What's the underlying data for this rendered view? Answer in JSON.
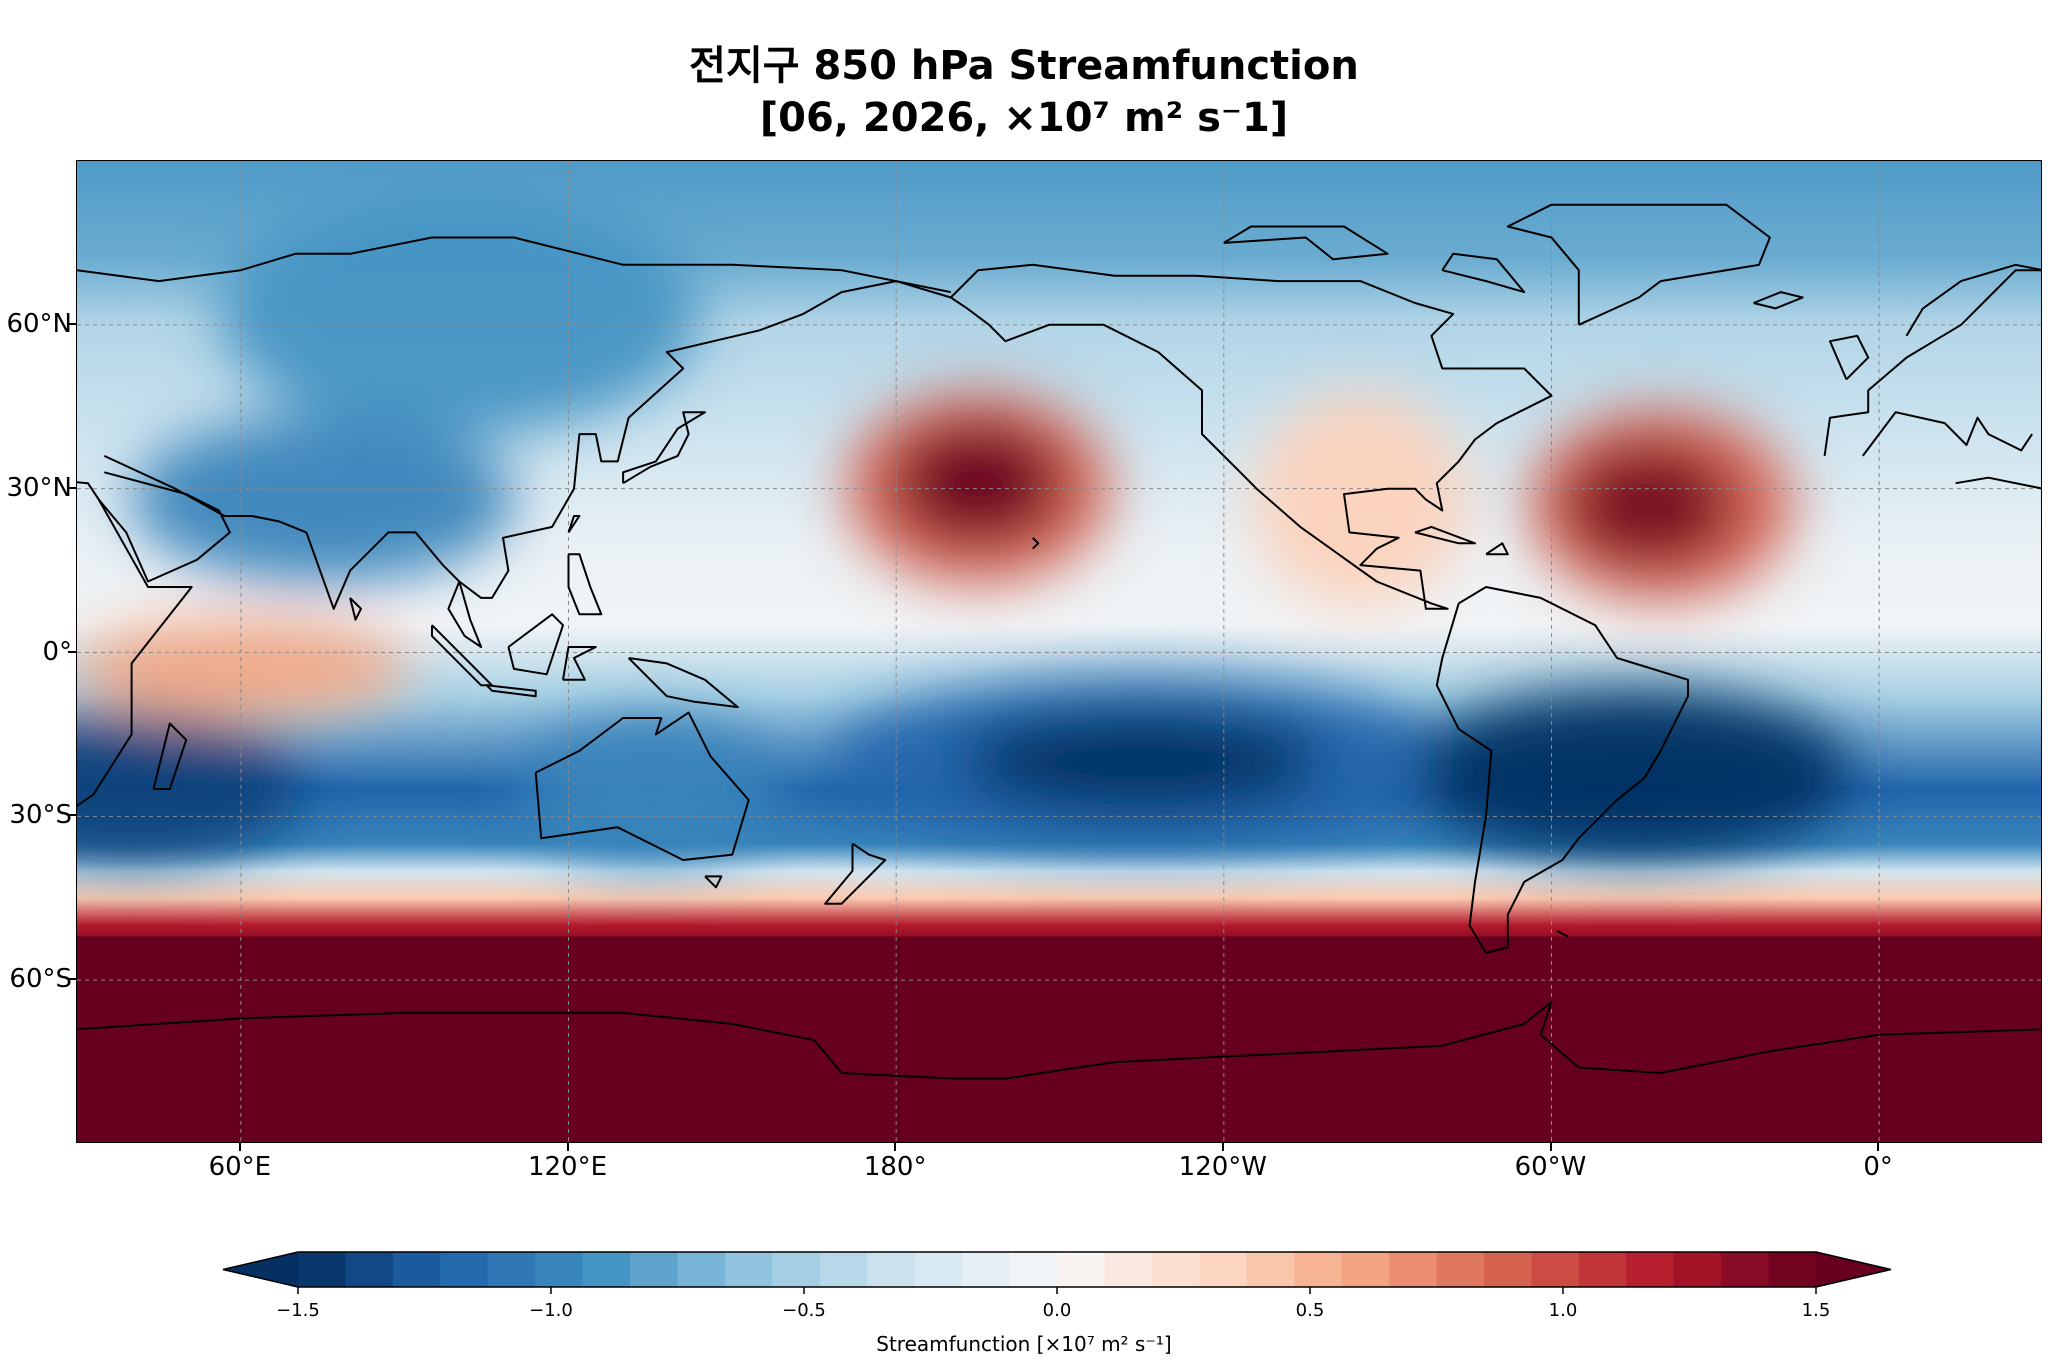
{
  "title": {
    "line1": "전지구 850 hPa Streamfunction",
    "line2": "[06, 2026, ×10⁷ m² s⁻1]"
  },
  "map": {
    "projection": "PlateCarree",
    "central_longitude": 160,
    "lon_range": [
      30,
      390
    ],
    "lat_range": [
      -90,
      90
    ],
    "gridlines": true,
    "coastlines": true,
    "lat_ticks": [
      {
        "lat": 60,
        "label": "60°N"
      },
      {
        "lat": 30,
        "label": "30°N"
      },
      {
        "lat": 0,
        "label": "0°"
      },
      {
        "lat": -30,
        "label": "30°S"
      },
      {
        "lat": -60,
        "label": "60°S"
      }
    ],
    "lon_ticks": [
      {
        "lon": 60,
        "label": "60°E"
      },
      {
        "lon": 120,
        "label": "120°E"
      },
      {
        "lon": 180,
        "label": "180°"
      },
      {
        "lon": 240,
        "label": "120°W"
      },
      {
        "lon": 300,
        "label": "60°W"
      },
      {
        "lon": 360,
        "label": "0°"
      }
    ]
  },
  "chart_data": {
    "type": "heatmap",
    "variable": "850 hPa streamfunction",
    "units": "×10^7 m^2 s^-1",
    "colormap": "RdBu_r",
    "vmin": -1.5,
    "vmax": 1.5,
    "levels": 34,
    "features": [
      {
        "name": "North Pacific anticyclone",
        "center_lon": 195,
        "center_lat": 30,
        "value": 1.5
      },
      {
        "name": "North Atlantic anticyclone",
        "center_lon": 320,
        "center_lat": 27,
        "value": 1.4
      },
      {
        "name": "Indian Ocean equatorial high",
        "center_lon": 60,
        "center_lat": -3,
        "value": 0.8
      },
      {
        "name": "South Pacific low",
        "center_lon": 225,
        "center_lat": -20,
        "value": -1.6
      },
      {
        "name": "South America / South Atlantic low",
        "center_lon": 310,
        "center_lat": -22,
        "value": -1.6
      },
      {
        "name": "South Indian Ocean low",
        "center_lon": 40,
        "center_lat": -25,
        "value": -1.4
      },
      {
        "name": "Australian low",
        "center_lon": 135,
        "center_lat": -25,
        "value": -1.0
      },
      {
        "name": "South Asian monsoon low",
        "center_lon": 75,
        "center_lat": 28,
        "value": -1.0
      },
      {
        "name": "Southern Hemisphere high latitudes",
        "lat_range": [
          -90,
          -50
        ],
        "value": 1.6
      }
    ]
  },
  "colorbar": {
    "ticks": [
      {
        "value": -1.5,
        "label": "−1.5"
      },
      {
        "value": -1.0,
        "label": "−1.0"
      },
      {
        "value": -0.5,
        "label": "−0.5"
      },
      {
        "value": 0.0,
        "label": "0.0"
      },
      {
        "value": 0.5,
        "label": "0.5"
      },
      {
        "value": 1.0,
        "label": "1.0"
      },
      {
        "value": 1.5,
        "label": "1.5"
      }
    ],
    "label": "Streamfunction [×10⁷ m² s⁻¹]",
    "extend": "both"
  }
}
